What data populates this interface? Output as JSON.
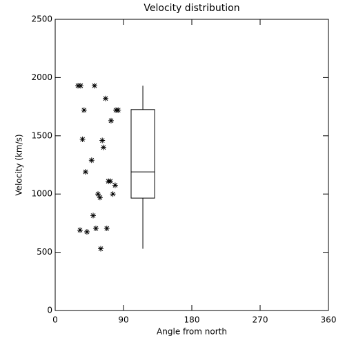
{
  "chart_data": {
    "type": "scatter",
    "title": "Velocity distribution",
    "x_label": "Angle from north",
    "y_label": "Velocity (km/s)",
    "x": [
      30,
      33.6,
      51.8,
      66.4,
      38,
      80,
      83,
      73.6,
      36,
      62,
      63.6,
      48,
      40,
      70,
      72.7,
      79,
      56.4,
      59,
      76,
      50,
      32.7,
      41.8,
      53.6,
      68,
      60
    ],
    "values": [
      1930,
      1930,
      1930,
      1820,
      1720,
      1720,
      1720,
      1630,
      1470,
      1460,
      1400,
      1290,
      1190,
      1110,
      1110,
      1075,
      1000,
      970,
      1000,
      815,
      690,
      675,
      705,
      705,
      530
    ],
    "color": "#000000",
    "box": {
      "x": 115.5,
      "width": 31,
      "whislo": 530,
      "q1": 965,
      "med": 1190,
      "q3": 1725,
      "whishi": 1930
    },
    "xlim": [
      0,
      360
    ],
    "xticks": [
      0,
      90,
      180,
      270,
      360
    ],
    "ylim": [
      0,
      2500
    ],
    "yticks": [
      0,
      500,
      1000,
      1500,
      2000,
      2500
    ]
  }
}
